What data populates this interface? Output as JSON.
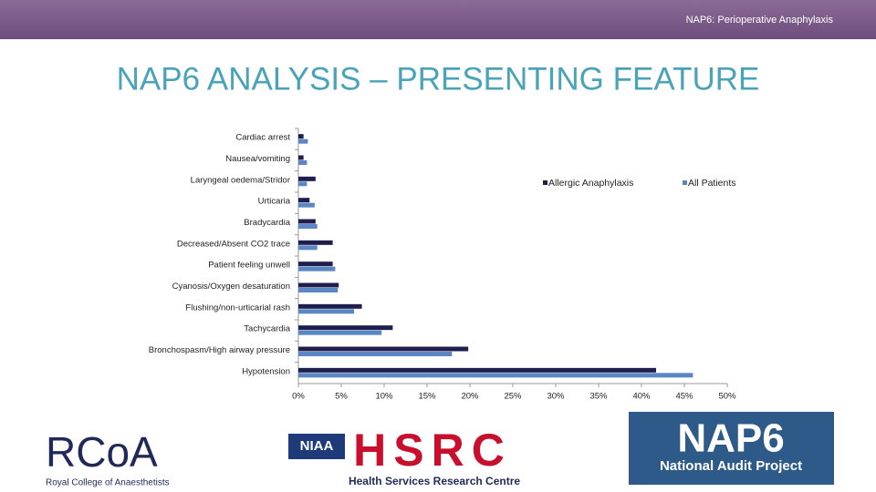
{
  "header": "NAP6: Perioperative Anaphylaxis",
  "chart_data": {
    "type": "bar",
    "orientation": "horizontal",
    "title": "NAP6 ANALYSIS – PRESENTING FEATURE",
    "categories": [
      "Cardiac arrest",
      "Nausea/vomiting",
      "Laryngeal oedema/Stridor",
      "Urticaria",
      "Bradycardia",
      "Decreased/Absent CO2 trace",
      "Patient feeling unwell",
      "Cyanosis/Oxygen desaturation",
      "Flushing/non-urticarial rash",
      "Tachycardia",
      "Bronchospasm/High airway pressure",
      "Hypotension"
    ],
    "series": [
      {
        "name": "Allergic Anaphylaxis",
        "color": "#1f1f4f",
        "values": [
          0.6,
          0.6,
          2.0,
          1.3,
          2.0,
          4.0,
          4.0,
          4.7,
          7.4,
          11.0,
          19.8,
          41.7
        ]
      },
      {
        "name": "All Patients",
        "color": "#5b86c4",
        "values": [
          1.1,
          1.0,
          1.0,
          1.9,
          2.2,
          2.2,
          4.3,
          4.6,
          6.5,
          9.7,
          17.9,
          46.0
        ]
      }
    ],
    "xlim": [
      0,
      50
    ],
    "xticks": [
      {
        "value": 0,
        "label": "0%"
      },
      {
        "value": 5,
        "label": "5%"
      },
      {
        "value": 10,
        "label": "10%"
      },
      {
        "value": 15,
        "label": "15%"
      },
      {
        "value": 20,
        "label": "20%"
      },
      {
        "value": 25,
        "label": "25%"
      },
      {
        "value": 30,
        "label": "30%"
      },
      {
        "value": 35,
        "label": "35%"
      },
      {
        "value": 40,
        "label": "40%"
      },
      {
        "value": 45,
        "label": "45%"
      },
      {
        "value": 50,
        "label": "50%"
      }
    ],
    "legend": "top-right"
  },
  "logos": {
    "rcoa": "RCoA",
    "rcoa_name": "Royal College of Anaesthetists",
    "niaa": "NIAA",
    "hsrc": "HSRC",
    "hsrc_name": "Health Services Research Centre",
    "nap6": "NAP6",
    "nap6_name": "National Audit Project"
  }
}
